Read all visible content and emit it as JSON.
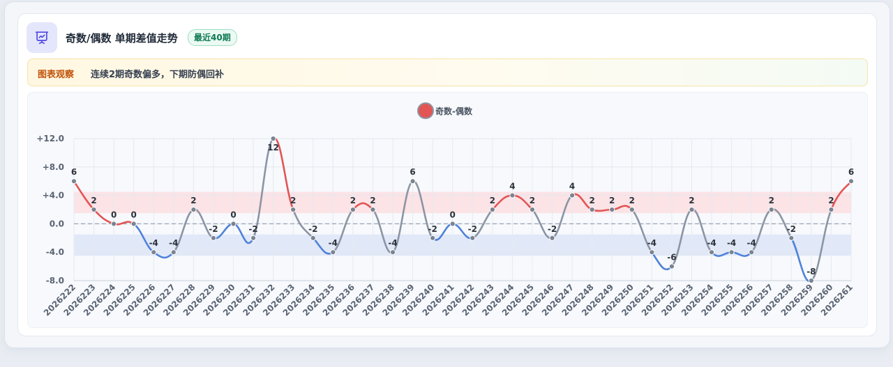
{
  "header": {
    "title": "奇数/偶数 单期差值走势",
    "badge": "最近40期",
    "icon": "presentation-chart-icon"
  },
  "notice": {
    "label": "图表观察",
    "text": "连续2期奇数偏多，下期防偶回补"
  },
  "colors": {
    "positive": "#e25555",
    "negative": "#4f82d9",
    "neutral": "#8b95a4",
    "positive_band": "#fbe3e6",
    "negative_band": "#e1e8f8",
    "marker": "#7a8492"
  },
  "chart_data": {
    "type": "line",
    "title": "",
    "xlabel": "",
    "ylabel": "",
    "legend": {
      "label": "奇数-偶数",
      "position": "top-center"
    },
    "ylim": [
      -8,
      12
    ],
    "yticks": [
      "+12.0",
      "+8.0",
      "+4.0",
      "0.0",
      "-4.0",
      "-8.0"
    ],
    "ytick_values": [
      12,
      8,
      4,
      0,
      -4,
      -8
    ],
    "bands": [
      {
        "from": 1.5,
        "to": 4.5,
        "kind": "positive"
      },
      {
        "from": -1.5,
        "to": -4.5,
        "kind": "negative"
      }
    ],
    "baseline": 0,
    "categories": [
      "2026222",
      "2026223",
      "2026224",
      "2026225",
      "2026226",
      "2026227",
      "2026228",
      "2026229",
      "2026230",
      "2026231",
      "2026232",
      "2026233",
      "2026234",
      "2026235",
      "2026236",
      "2026237",
      "2026238",
      "2026239",
      "2026240",
      "2026241",
      "2026242",
      "2026243",
      "2026244",
      "2026245",
      "2026246",
      "2026247",
      "2026248",
      "2026249",
      "2026250",
      "2026251",
      "2026252",
      "2026253",
      "2026254",
      "2026255",
      "2026256",
      "2026257",
      "2026258",
      "2026259",
      "2026260",
      "2026261"
    ],
    "series": [
      {
        "name": "奇数-偶数",
        "values": [
          6,
          2,
          0,
          0,
          -4,
          -4,
          2,
          -2,
          0,
          -2,
          12,
          2,
          -2,
          -4,
          2,
          2,
          -4,
          6,
          -2,
          0,
          -2,
          2,
          4,
          2,
          -2,
          4,
          2,
          2,
          2,
          -4,
          -6,
          2,
          -4,
          -4,
          -4,
          2,
          -2,
          -8,
          2,
          6
        ],
        "labels": [
          "6",
          "2",
          "0",
          "0",
          "-4",
          "-4",
          "2",
          "-2",
          "0",
          "-2",
          "12",
          "2",
          "-2",
          "-4",
          "2",
          "2",
          "-4",
          "6",
          "-2",
          "0",
          "-2",
          "2",
          "4",
          "2",
          "-2",
          "4",
          "2",
          "2",
          "2",
          "-4",
          "-6",
          "2",
          "-4",
          "-4",
          "-4",
          "2",
          "-2",
          "-8",
          "2",
          "6"
        ]
      }
    ]
  }
}
